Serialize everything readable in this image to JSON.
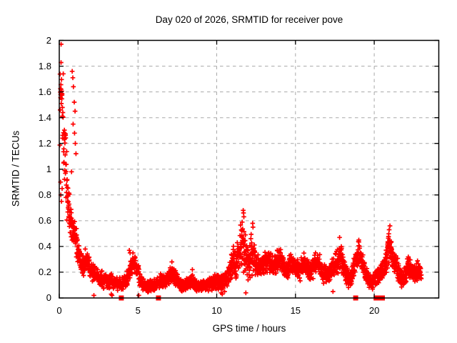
{
  "chart_data": {
    "type": "scatter",
    "title": "Day 020 of 2026, SRMTID for receiver pove",
    "xlabel": "GPS time / hours",
    "ylabel": "SRMTID / TECUs",
    "xlim": [
      0,
      24.1
    ],
    "ylim": [
      0,
      2
    ],
    "x_tick_values": [
      0,
      5,
      10,
      15,
      20
    ],
    "x_tick_labels": [
      "0",
      "5",
      "10",
      "15",
      "20"
    ],
    "y_tick_values": [
      0,
      0.2,
      0.4,
      0.6,
      0.8,
      1,
      1.2,
      1.4,
      1.6,
      1.8,
      2
    ],
    "y_tick_labels": [
      "0",
      "0.2",
      "0.4",
      "0.6",
      "0.8",
      "1",
      "1.2",
      "1.4",
      "1.6",
      "1.8",
      "2"
    ],
    "grid": true,
    "legend": "none",
    "colors": {
      "marker": "#ff0000",
      "axis": "#000000",
      "grid": "#a8a8a8",
      "background": "#ffffff",
      "text": "#000000"
    },
    "series": [
      {
        "name": "SRMTID",
        "marker": "plus",
        "points_per_hour": 115,
        "seed": 1337,
        "envelope_t_mean_spread": [
          [
            0.04,
            1.5,
            0.5
          ],
          [
            0.12,
            1.7,
            0.28
          ],
          [
            0.2,
            1.55,
            0.4
          ],
          [
            0.3,
            1.3,
            0.4
          ],
          [
            0.4,
            1.05,
            0.35
          ],
          [
            0.5,
            0.85,
            0.3
          ],
          [
            0.62,
            0.68,
            0.2
          ],
          [
            0.75,
            0.58,
            0.16
          ],
          [
            0.9,
            0.52,
            0.15
          ],
          [
            1.0,
            0.47,
            0.14
          ],
          [
            1.1,
            0.42,
            0.13
          ],
          [
            1.25,
            0.34,
            0.12
          ],
          [
            1.4,
            0.27,
            0.1
          ],
          [
            1.55,
            0.25,
            0.1
          ],
          [
            1.7,
            0.3,
            0.1
          ],
          [
            1.85,
            0.26,
            0.09
          ],
          [
            2.0,
            0.22,
            0.08
          ],
          [
            2.2,
            0.19,
            0.08
          ],
          [
            2.4,
            0.17,
            0.07
          ],
          [
            2.6,
            0.15,
            0.07
          ],
          [
            2.8,
            0.14,
            0.07
          ],
          [
            3.0,
            0.13,
            0.06
          ],
          [
            3.2,
            0.12,
            0.07
          ],
          [
            3.4,
            0.13,
            0.06
          ],
          [
            3.6,
            0.12,
            0.06
          ],
          [
            3.8,
            0.11,
            0.06
          ],
          [
            4.0,
            0.11,
            0.06
          ],
          [
            4.2,
            0.13,
            0.06
          ],
          [
            4.4,
            0.19,
            0.08
          ],
          [
            4.6,
            0.26,
            0.09
          ],
          [
            4.8,
            0.28,
            0.09
          ],
          [
            5.0,
            0.2,
            0.08
          ],
          [
            5.2,
            0.12,
            0.06
          ],
          [
            5.4,
            0.09,
            0.05
          ],
          [
            5.6,
            0.09,
            0.05
          ],
          [
            5.8,
            0.1,
            0.05
          ],
          [
            6.0,
            0.1,
            0.05
          ],
          [
            6.2,
            0.12,
            0.06
          ],
          [
            6.4,
            0.14,
            0.06
          ],
          [
            6.6,
            0.13,
            0.06
          ],
          [
            6.8,
            0.14,
            0.06
          ],
          [
            7.0,
            0.17,
            0.07
          ],
          [
            7.2,
            0.19,
            0.08
          ],
          [
            7.4,
            0.15,
            0.07
          ],
          [
            7.6,
            0.12,
            0.06
          ],
          [
            7.8,
            0.1,
            0.05
          ],
          [
            8.0,
            0.1,
            0.05
          ],
          [
            8.2,
            0.12,
            0.06
          ],
          [
            8.4,
            0.14,
            0.07
          ],
          [
            8.6,
            0.11,
            0.06
          ],
          [
            8.8,
            0.09,
            0.05
          ],
          [
            9.0,
            0.09,
            0.05
          ],
          [
            9.2,
            0.1,
            0.05
          ],
          [
            9.4,
            0.1,
            0.06
          ],
          [
            9.6,
            0.11,
            0.06
          ],
          [
            9.8,
            0.12,
            0.06
          ],
          [
            10.0,
            0.13,
            0.07
          ],
          [
            10.2,
            0.12,
            0.07
          ],
          [
            10.4,
            0.13,
            0.08
          ],
          [
            10.6,
            0.16,
            0.08
          ],
          [
            10.8,
            0.2,
            0.1
          ],
          [
            11.0,
            0.3,
            0.15
          ],
          [
            11.2,
            0.26,
            0.13
          ],
          [
            11.4,
            0.33,
            0.15
          ],
          [
            11.6,
            0.45,
            0.22
          ],
          [
            11.75,
            0.42,
            0.26
          ],
          [
            11.9,
            0.3,
            0.2
          ],
          [
            12.05,
            0.24,
            0.16
          ],
          [
            12.2,
            0.35,
            0.2
          ],
          [
            12.35,
            0.33,
            0.15
          ],
          [
            12.5,
            0.27,
            0.11
          ],
          [
            12.7,
            0.24,
            0.1
          ],
          [
            12.9,
            0.26,
            0.1
          ],
          [
            13.1,
            0.28,
            0.1
          ],
          [
            13.3,
            0.3,
            0.11
          ],
          [
            13.5,
            0.24,
            0.1
          ],
          [
            13.7,
            0.27,
            0.1
          ],
          [
            13.9,
            0.31,
            0.11
          ],
          [
            14.1,
            0.29,
            0.1
          ],
          [
            14.3,
            0.24,
            0.09
          ],
          [
            14.5,
            0.22,
            0.09
          ],
          [
            14.7,
            0.28,
            0.1
          ],
          [
            14.9,
            0.26,
            0.1
          ],
          [
            15.1,
            0.23,
            0.09
          ],
          [
            15.3,
            0.22,
            0.09
          ],
          [
            15.5,
            0.27,
            0.09
          ],
          [
            15.7,
            0.24,
            0.09
          ],
          [
            15.9,
            0.2,
            0.09
          ],
          [
            16.1,
            0.24,
            0.1
          ],
          [
            16.3,
            0.28,
            0.1
          ],
          [
            16.5,
            0.26,
            0.1
          ],
          [
            16.7,
            0.22,
            0.09
          ],
          [
            16.9,
            0.18,
            0.09
          ],
          [
            17.1,
            0.19,
            0.09
          ],
          [
            17.3,
            0.22,
            0.09
          ],
          [
            17.5,
            0.26,
            0.1
          ],
          [
            17.7,
            0.3,
            0.12
          ],
          [
            17.85,
            0.33,
            0.12
          ],
          [
            18.0,
            0.26,
            0.1
          ],
          [
            18.2,
            0.19,
            0.09
          ],
          [
            18.4,
            0.15,
            0.08
          ],
          [
            18.6,
            0.18,
            0.09
          ],
          [
            18.8,
            0.28,
            0.11
          ],
          [
            19.0,
            0.36,
            0.1
          ],
          [
            19.15,
            0.32,
            0.1
          ],
          [
            19.3,
            0.26,
            0.1
          ],
          [
            19.5,
            0.18,
            0.08
          ],
          [
            19.7,
            0.13,
            0.06
          ],
          [
            19.9,
            0.12,
            0.06
          ],
          [
            20.1,
            0.15,
            0.07
          ],
          [
            20.3,
            0.18,
            0.08
          ],
          [
            20.5,
            0.2,
            0.09
          ],
          [
            20.7,
            0.28,
            0.13
          ],
          [
            20.9,
            0.4,
            0.15
          ],
          [
            21.05,
            0.38,
            0.13
          ],
          [
            21.2,
            0.3,
            0.11
          ],
          [
            21.4,
            0.24,
            0.1
          ],
          [
            21.6,
            0.19,
            0.09
          ],
          [
            21.8,
            0.14,
            0.07
          ],
          [
            22.0,
            0.2,
            0.09
          ],
          [
            22.2,
            0.25,
            0.09
          ],
          [
            22.4,
            0.22,
            0.09
          ],
          [
            22.6,
            0.18,
            0.08
          ],
          [
            22.8,
            0.22,
            0.09
          ],
          [
            23.0,
            0.19,
            0.08
          ]
        ],
        "extra_points": [
          [
            0.12,
            1.97
          ],
          [
            0.08,
            0.9
          ],
          [
            0.1,
            0.8
          ],
          [
            0.14,
            0.75
          ],
          [
            0.18,
            0.85
          ],
          [
            0.82,
            1.76
          ],
          [
            0.86,
            1.71
          ],
          [
            0.9,
            1.64
          ],
          [
            0.95,
            1.52
          ],
          [
            1.0,
            1.45
          ],
          [
            0.88,
            1.35
          ],
          [
            0.97,
            1.28
          ],
          [
            1.02,
            1.2
          ],
          [
            1.06,
            1.12
          ],
          [
            0.78,
            0.98
          ],
          [
            1.65,
            0.38
          ],
          [
            2.2,
            0.02
          ],
          [
            3.3,
            0.03
          ],
          [
            3.35,
            0.02
          ],
          [
            4.45,
            0.37
          ],
          [
            4.5,
            0.35
          ],
          [
            5.05,
            0.02
          ],
          [
            7.15,
            0.28
          ],
          [
            8.45,
            0.22
          ],
          [
            10.28,
            0.04
          ],
          [
            10.35,
            0.03
          ],
          [
            10.5,
            0.05
          ],
          [
            11.68,
            0.68
          ],
          [
            11.7,
            0.66
          ],
          [
            11.72,
            0.63
          ],
          [
            11.85,
            0.04
          ],
          [
            12.28,
            0.58
          ],
          [
            12.3,
            0.55
          ],
          [
            17.38,
            0.05
          ],
          [
            17.8,
            0.47
          ],
          [
            19.02,
            0.45
          ],
          [
            20.95,
            0.53
          ],
          [
            21.0,
            0.56
          ]
        ]
      },
      {
        "name": "zero-flags",
        "marker": "filled-square",
        "points": [
          [
            3.94,
            0
          ],
          [
            6.3,
            0
          ],
          [
            18.82,
            0
          ],
          [
            20.12,
            0
          ],
          [
            20.35,
            0
          ],
          [
            20.52,
            0
          ]
        ]
      }
    ],
    "notable_points": [
      [
        0.12,
        1.97
      ],
      [
        11.7,
        0.68
      ],
      [
        12.3,
        0.58
      ],
      [
        17.8,
        0.47
      ],
      [
        19.0,
        0.45
      ],
      [
        21.0,
        0.56
      ]
    ]
  }
}
